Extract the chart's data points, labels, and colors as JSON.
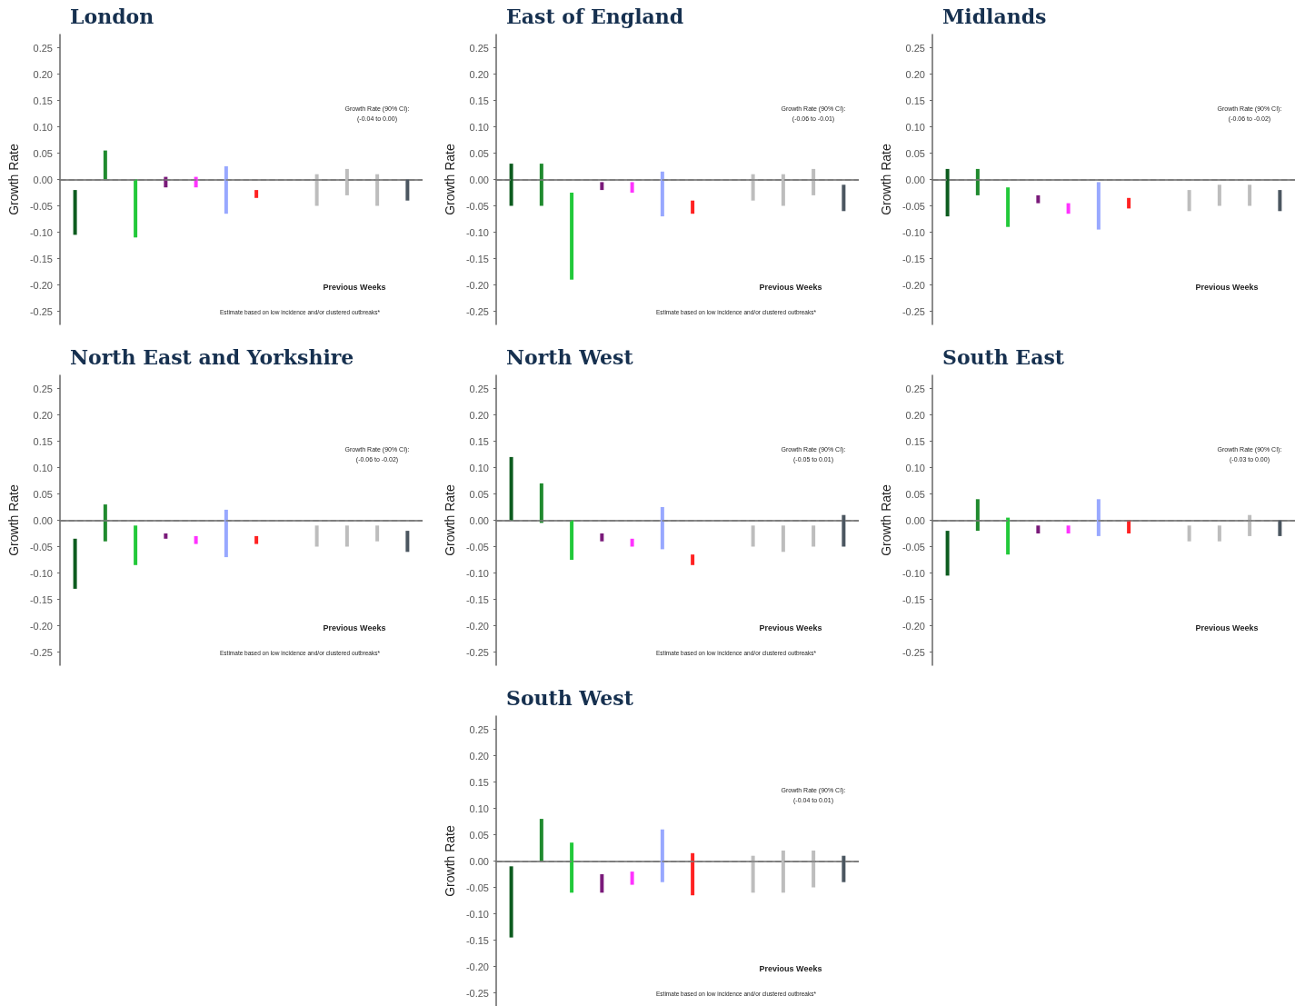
{
  "chart_data": [
    {
      "type": "bar",
      "title": "London",
      "ylabel": "Growth Rate",
      "categories": [
        null,
        null,
        null,
        null,
        null,
        null,
        null,
        null,
        null,
        null,
        null,
        null
      ],
      "colors": [
        "#0d5c1f",
        "#1f8a2e",
        "#22c93a",
        "#7a1a7a",
        "#ff33ff",
        "#98a8ff",
        "#ff2222",
        null,
        "#bdbdbd",
        "#bdbdbd",
        "#bdbdbd",
        "#4b5660"
      ],
      "base": [
        -0.105,
        0,
        -0.11,
        -0.015,
        -0.015,
        -0.065,
        -0.035,
        null,
        -0.05,
        -0.03,
        -0.05,
        -0.04
      ],
      "values": [
        0.085,
        0.055,
        0.11,
        0.02,
        0.02,
        0.09,
        0.015,
        null,
        0.06,
        0.05,
        0.06,
        0.04
      ],
      "ylim": [
        -0.275,
        0.275
      ],
      "yticks": [
        {
          "value": -0.25,
          "label": "-0.25"
        },
        {
          "value": -0.2,
          "label": "-0.20"
        },
        {
          "value": -0.15,
          "label": "-0.15"
        },
        {
          "value": -0.1,
          "label": "-0.10"
        },
        {
          "value": -0.05,
          "label": "-0.05"
        },
        {
          "value": 0,
          "label": "0.00"
        },
        {
          "value": 0.05,
          "label": "0.05"
        },
        {
          "value": 0.1,
          "label": "0.10"
        },
        {
          "value": 0.15,
          "label": "0.15"
        },
        {
          "value": 0.2,
          "label": "0.20"
        },
        {
          "value": 0.25,
          "label": "0.25"
        }
      ],
      "tick_labels": "y",
      "ref_lines": [
        {
          "axis": "y",
          "value": 0,
          "color": "#7a7a7a",
          "line_style": "dashed"
        }
      ],
      "annotations": [
        "Growth Rate (90% CI):",
        "(-0.04 to 0.00)",
        "Previous Weeks",
        "Estimate based on low incidence and/or clustered outbreaks*"
      ]
    },
    {
      "type": "bar",
      "title": "East of England",
      "ylabel": "Growth Rate",
      "categories": [
        null,
        null,
        null,
        null,
        null,
        null,
        null,
        null,
        null,
        null,
        null,
        null
      ],
      "colors": [
        "#0d5c1f",
        "#1f8a2e",
        "#22c93a",
        "#7a1a7a",
        "#ff33ff",
        "#98a8ff",
        "#ff2222",
        null,
        "#bdbdbd",
        "#bdbdbd",
        "#bdbdbd",
        "#4b5660"
      ],
      "base": [
        -0.05,
        -0.05,
        -0.19,
        -0.02,
        -0.025,
        -0.07,
        -0.065,
        null,
        -0.04,
        -0.05,
        -0.03,
        -0.06
      ],
      "values": [
        0.08,
        0.08,
        0.165,
        0.015,
        0.02,
        0.085,
        0.025,
        null,
        0.05,
        0.06,
        0.05,
        0.05
      ],
      "ylim": [
        -0.275,
        0.275
      ],
      "yticks": [
        {
          "value": -0.25,
          "label": "-0.25"
        },
        {
          "value": -0.2,
          "label": "-0.20"
        },
        {
          "value": -0.15,
          "label": "-0.15"
        },
        {
          "value": -0.1,
          "label": "-0.10"
        },
        {
          "value": -0.05,
          "label": "-0.05"
        },
        {
          "value": 0,
          "label": "0.00"
        },
        {
          "value": 0.05,
          "label": "0.05"
        },
        {
          "value": 0.1,
          "label": "0.10"
        },
        {
          "value": 0.15,
          "label": "0.15"
        },
        {
          "value": 0.2,
          "label": "0.20"
        },
        {
          "value": 0.25,
          "label": "0.25"
        }
      ],
      "tick_labels": "y",
      "ref_lines": [
        {
          "axis": "y",
          "value": 0,
          "color": "#7a7a7a",
          "line_style": "dashed"
        }
      ],
      "annotations": [
        "Growth Rate (90% CI):",
        "(-0.06 to -0.01)",
        "Previous Weeks",
        "Estimate based on low incidence and/or clustered outbreaks*"
      ]
    },
    {
      "type": "bar",
      "title": "Midlands",
      "ylabel": "Growth Rate",
      "categories": [
        null,
        null,
        null,
        null,
        null,
        null,
        null,
        null,
        null,
        null,
        null,
        null
      ],
      "colors": [
        "#0d5c1f",
        "#1f8a2e",
        "#22c93a",
        "#7a1a7a",
        "#ff33ff",
        "#98a8ff",
        "#ff2222",
        null,
        "#bdbdbd",
        "#bdbdbd",
        "#bdbdbd",
        "#4b5660"
      ],
      "base": [
        -0.07,
        -0.03,
        -0.09,
        -0.045,
        -0.065,
        -0.095,
        -0.055,
        null,
        -0.06,
        -0.05,
        -0.05,
        -0.06
      ],
      "values": [
        0.09,
        0.05,
        0.075,
        0.015,
        0.02,
        0.09,
        0.02,
        null,
        0.04,
        0.04,
        0.04,
        0.04
      ],
      "ylim": [
        -0.275,
        0.275
      ],
      "yticks": [
        {
          "value": -0.25,
          "label": "-0.25"
        },
        {
          "value": -0.2,
          "label": "-0.20"
        },
        {
          "value": -0.15,
          "label": "-0.15"
        },
        {
          "value": -0.1,
          "label": "-0.10"
        },
        {
          "value": -0.05,
          "label": "-0.05"
        },
        {
          "value": 0,
          "label": "0.00"
        },
        {
          "value": 0.05,
          "label": "0.05"
        },
        {
          "value": 0.1,
          "label": "0.10"
        },
        {
          "value": 0.15,
          "label": "0.15"
        },
        {
          "value": 0.2,
          "label": "0.20"
        },
        {
          "value": 0.25,
          "label": "0.25"
        }
      ],
      "tick_labels": "y",
      "ref_lines": [
        {
          "axis": "y",
          "value": 0,
          "color": "#7a7a7a",
          "line_style": "dashed"
        }
      ],
      "annotations": [
        "Growth Rate (90% CI):",
        "(-0.06 to -0.02)",
        "Previous Weeks"
      ]
    },
    {
      "type": "bar",
      "title": "North East and Yorkshire",
      "ylabel": "Growth Rate",
      "categories": [
        null,
        null,
        null,
        null,
        null,
        null,
        null,
        null,
        null,
        null,
        null,
        null
      ],
      "colors": [
        "#0d5c1f",
        "#1f8a2e",
        "#22c93a",
        "#7a1a7a",
        "#ff33ff",
        "#98a8ff",
        "#ff2222",
        null,
        "#bdbdbd",
        "#bdbdbd",
        "#bdbdbd",
        "#4b5660"
      ],
      "base": [
        -0.13,
        -0.04,
        -0.085,
        -0.035,
        -0.045,
        -0.07,
        -0.045,
        null,
        -0.05,
        -0.05,
        -0.04,
        -0.06
      ],
      "values": [
        0.095,
        0.07,
        0.075,
        0.01,
        0.015,
        0.09,
        0.015,
        null,
        0.04,
        0.04,
        0.03,
        0.04
      ],
      "ylim": [
        -0.275,
        0.275
      ],
      "yticks": [
        {
          "value": -0.25,
          "label": "-0.25"
        },
        {
          "value": -0.2,
          "label": "-0.20"
        },
        {
          "value": -0.15,
          "label": "-0.15"
        },
        {
          "value": -0.1,
          "label": "-0.10"
        },
        {
          "value": -0.05,
          "label": "-0.05"
        },
        {
          "value": 0,
          "label": "0.00"
        },
        {
          "value": 0.05,
          "label": "0.05"
        },
        {
          "value": 0.1,
          "label": "0.10"
        },
        {
          "value": 0.15,
          "label": "0.15"
        },
        {
          "value": 0.2,
          "label": "0.20"
        },
        {
          "value": 0.25,
          "label": "0.25"
        }
      ],
      "tick_labels": "y",
      "ref_lines": [
        {
          "axis": "y",
          "value": 0,
          "color": "#7a7a7a",
          "line_style": "dashed"
        }
      ],
      "annotations": [
        "Growth Rate (90% CI):",
        "(-0.06 to -0.02)",
        "Previous Weeks",
        "Estimate based on low incidence and/or clustered outbreaks*"
      ]
    },
    {
      "type": "bar",
      "title": "North West",
      "ylabel": "Growth Rate",
      "categories": [
        null,
        null,
        null,
        null,
        null,
        null,
        null,
        null,
        null,
        null,
        null,
        null
      ],
      "colors": [
        "#0d5c1f",
        "#1f8a2e",
        "#22c93a",
        "#7a1a7a",
        "#ff33ff",
        "#98a8ff",
        "#ff2222",
        null,
        "#bdbdbd",
        "#bdbdbd",
        "#bdbdbd",
        "#4b5660"
      ],
      "base": [
        0,
        -0.005,
        -0.075,
        -0.04,
        -0.05,
        -0.055,
        -0.085,
        null,
        -0.05,
        -0.06,
        -0.05,
        -0.05
      ],
      "values": [
        0.12,
        0.075,
        0.075,
        0.015,
        0.015,
        0.08,
        0.02,
        null,
        0.04,
        0.05,
        0.04,
        0.06
      ],
      "ylim": [
        -0.275,
        0.275
      ],
      "yticks": [
        {
          "value": -0.25,
          "label": "-0.25"
        },
        {
          "value": -0.2,
          "label": "-0.20"
        },
        {
          "value": -0.15,
          "label": "-0.15"
        },
        {
          "value": -0.1,
          "label": "-0.10"
        },
        {
          "value": -0.05,
          "label": "-0.05"
        },
        {
          "value": 0,
          "label": "0.00"
        },
        {
          "value": 0.05,
          "label": "0.05"
        },
        {
          "value": 0.1,
          "label": "0.10"
        },
        {
          "value": 0.15,
          "label": "0.15"
        },
        {
          "value": 0.2,
          "label": "0.20"
        },
        {
          "value": 0.25,
          "label": "0.25"
        }
      ],
      "tick_labels": "y",
      "ref_lines": [
        {
          "axis": "y",
          "value": 0,
          "color": "#7a7a7a",
          "line_style": "dashed"
        }
      ],
      "annotations": [
        "Growth Rate (90% CI):",
        "(-0.05 to 0.01)",
        "Previous Weeks",
        "Estimate based on low incidence and/or clustered outbreaks*"
      ]
    },
    {
      "type": "bar",
      "title": "South East",
      "ylabel": "Growth Rate",
      "categories": [
        null,
        null,
        null,
        null,
        null,
        null,
        null,
        null,
        null,
        null,
        null,
        null
      ],
      "colors": [
        "#0d5c1f",
        "#1f8a2e",
        "#22c93a",
        "#7a1a7a",
        "#ff33ff",
        "#98a8ff",
        "#ff2222",
        null,
        "#bdbdbd",
        "#bdbdbd",
        "#bdbdbd",
        "#4b5660"
      ],
      "base": [
        -0.105,
        -0.02,
        -0.065,
        -0.025,
        -0.025,
        -0.03,
        -0.025,
        null,
        -0.04,
        -0.04,
        -0.03,
        -0.03
      ],
      "values": [
        0.085,
        0.06,
        0.07,
        0.015,
        0.015,
        0.07,
        0.025,
        null,
        0.03,
        0.03,
        0.04,
        0.03
      ],
      "ylim": [
        -0.275,
        0.275
      ],
      "yticks": [
        {
          "value": -0.25,
          "label": "-0.25"
        },
        {
          "value": -0.2,
          "label": "-0.20"
        },
        {
          "value": -0.15,
          "label": "-0.15"
        },
        {
          "value": -0.1,
          "label": "-0.10"
        },
        {
          "value": -0.05,
          "label": "-0.05"
        },
        {
          "value": 0,
          "label": "0.00"
        },
        {
          "value": 0.05,
          "label": "0.05"
        },
        {
          "value": 0.1,
          "label": "0.10"
        },
        {
          "value": 0.15,
          "label": "0.15"
        },
        {
          "value": 0.2,
          "label": "0.20"
        },
        {
          "value": 0.25,
          "label": "0.25"
        }
      ],
      "tick_labels": "y",
      "ref_lines": [
        {
          "axis": "y",
          "value": 0,
          "color": "#7a7a7a",
          "line_style": "dashed"
        }
      ],
      "annotations": [
        "Growth Rate (90% CI):",
        "(-0.03 to 0.00)",
        "Previous Weeks"
      ]
    },
    {
      "type": "bar",
      "title": "South West",
      "ylabel": "Growth Rate",
      "categories": [
        null,
        null,
        null,
        null,
        null,
        null,
        null,
        null,
        null,
        null,
        null,
        null
      ],
      "colors": [
        "#0d5c1f",
        "#1f8a2e",
        "#22c93a",
        "#7a1a7a",
        "#ff33ff",
        "#98a8ff",
        "#ff2222",
        null,
        "#bdbdbd",
        "#bdbdbd",
        "#bdbdbd",
        "#4b5660"
      ],
      "base": [
        -0.145,
        0,
        -0.06,
        -0.06,
        -0.045,
        -0.04,
        -0.065,
        null,
        -0.06,
        -0.06,
        -0.05,
        -0.04
      ],
      "values": [
        0.135,
        0.08,
        0.095,
        0.035,
        0.025,
        0.1,
        0.08,
        null,
        0.07,
        0.08,
        0.07,
        0.05
      ],
      "ylim": [
        -0.275,
        0.275
      ],
      "yticks": [
        {
          "value": -0.25,
          "label": "-0.25"
        },
        {
          "value": -0.2,
          "label": "-0.20"
        },
        {
          "value": -0.15,
          "label": "-0.15"
        },
        {
          "value": -0.1,
          "label": "-0.10"
        },
        {
          "value": -0.05,
          "label": "-0.05"
        },
        {
          "value": 0,
          "label": "0.00"
        },
        {
          "value": 0.05,
          "label": "0.05"
        },
        {
          "value": 0.1,
          "label": "0.10"
        },
        {
          "value": 0.15,
          "label": "0.15"
        },
        {
          "value": 0.2,
          "label": "0.20"
        },
        {
          "value": 0.25,
          "label": "0.25"
        }
      ],
      "tick_labels": "y",
      "ref_lines": [
        {
          "axis": "y",
          "value": 0,
          "color": "#7a7a7a",
          "line_style": "dashed"
        }
      ],
      "annotations": [
        "Growth Rate (90% CI):",
        "(-0.04 to 0.01)",
        "Previous Weeks",
        "Estimate based on low incidence and/or clustered outbreaks*"
      ]
    }
  ]
}
